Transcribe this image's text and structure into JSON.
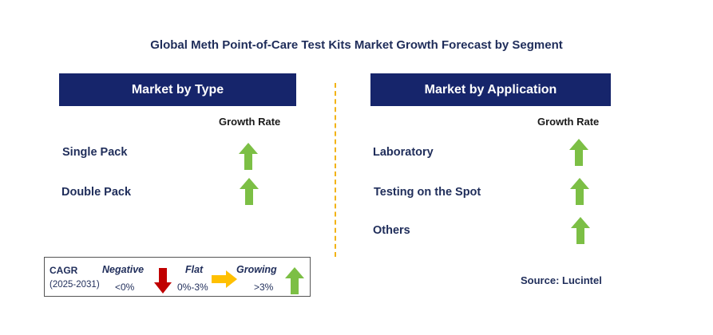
{
  "title": "Global Meth Point-of-Care Test Kits Market Growth Forecast by Segment",
  "left_panel": {
    "header": "Market by Type",
    "growth_rate_label": "Growth Rate",
    "rows": [
      {
        "label": "Single Pack",
        "trend": "growing"
      },
      {
        "label": "Double Pack",
        "trend": "growing"
      }
    ]
  },
  "right_panel": {
    "header": "Market by Application",
    "growth_rate_label": "Growth Rate",
    "rows": [
      {
        "label": "Laboratory",
        "trend": "growing"
      },
      {
        "label": "Testing on the Spot",
        "trend": "growing"
      },
      {
        "label": "Others",
        "trend": "growing"
      }
    ]
  },
  "legend": {
    "cagr": "CAGR",
    "period": "(2025-2031)",
    "negative": {
      "label": "Negative",
      "range": "<0%",
      "color": "#c00000",
      "icon": "down-arrow-icon"
    },
    "flat": {
      "label": "Flat",
      "range": "0%-3%",
      "color": "#ffc000",
      "icon": "right-arrow-icon"
    },
    "growing": {
      "label": "Growing",
      "range": ">3%",
      "color": "#7cbf45",
      "icon": "up-arrow-icon"
    }
  },
  "source": "Source: Lucintel",
  "colors": {
    "header_bg": "#16256b",
    "up_arrow": "#7cbf45",
    "divider": "#f2b316"
  }
}
